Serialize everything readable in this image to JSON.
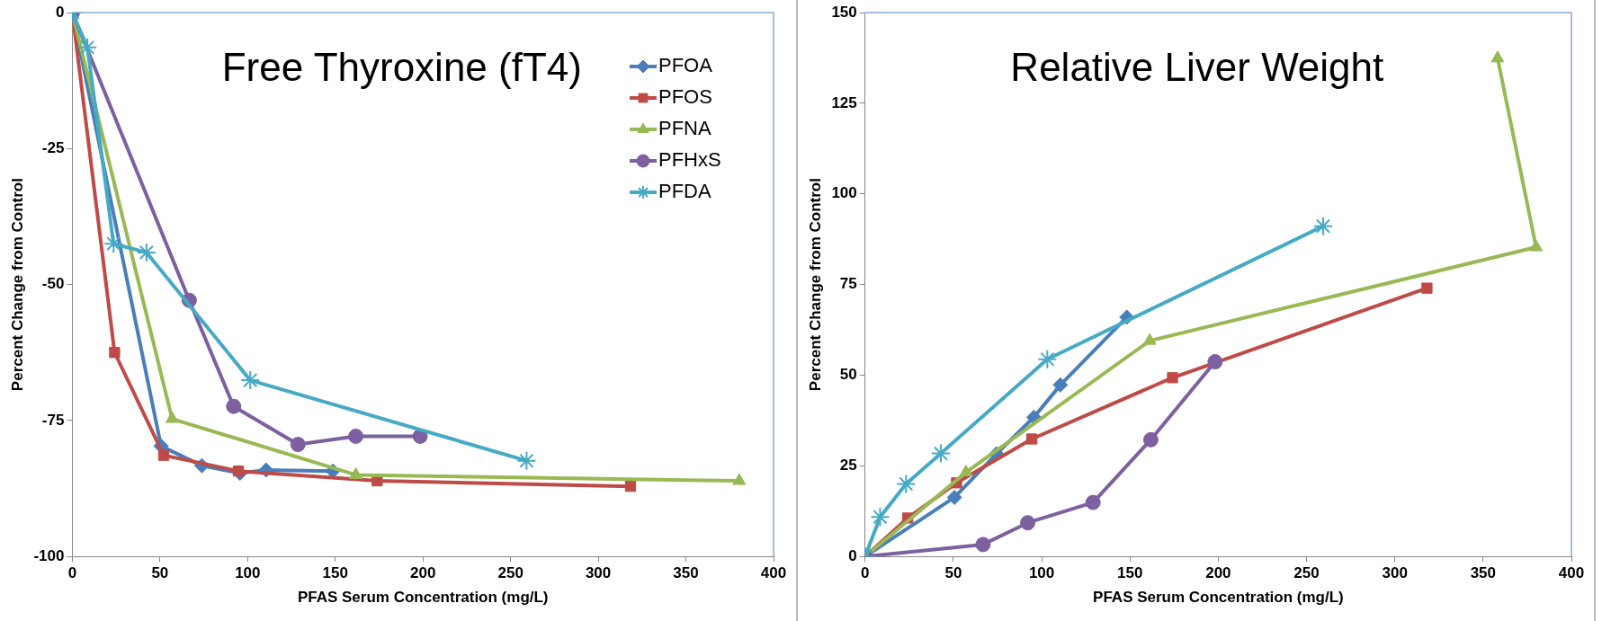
{
  "chart_data": [
    {
      "type": "line",
      "title": "Free Thyroxine (fT4)",
      "xlabel": "PFAS Serum Concentration (mg/L)",
      "ylabel": "Percent Change from Control",
      "xlim": [
        0,
        400
      ],
      "xticks": [
        0,
        50,
        100,
        150,
        200,
        250,
        300,
        350,
        400
      ],
      "ylim": [
        -100,
        0
      ],
      "yticks": [
        -100,
        -75,
        -50,
        -25,
        0
      ],
      "grid": false,
      "legend": "top right",
      "line_style": "solid",
      "series": [
        {
          "name": "PFOA",
          "color": "#4a7ebb",
          "marker": "diamond",
          "x": [
            0,
            50.6,
            73.9,
            95.6,
            110.5,
            148.6
          ],
          "values": [
            0,
            -79.7,
            -83.3,
            -84.7,
            -84.1,
            -84.3
          ]
        },
        {
          "name": "PFOS",
          "color": "#be4b48",
          "marker": "square",
          "x": [
            0,
            24.1,
            52.1,
            94.7,
            173.9,
            318.4
          ],
          "values": [
            0,
            -62.5,
            -81.4,
            -84.3,
            -86.1,
            -87.1
          ]
        },
        {
          "name": "PFNA",
          "color": "#98b954",
          "marker": "triangle",
          "x": [
            0,
            56.9,
            161.7,
            380.4
          ],
          "values": [
            0,
            -74.7,
            -85,
            -86.1
          ]
        },
        {
          "name": "PFHxS",
          "color": "#7d60a0",
          "marker": "circle",
          "x": [
            0,
            66.7,
            92,
            128.7,
            161.7,
            198.4
          ],
          "values": [
            0,
            -52.9,
            -72.4,
            -79.4,
            -77.9,
            -77.9
          ]
        },
        {
          "name": "PFDA",
          "color": "#46aac5",
          "marker": "cross",
          "x": [
            0,
            8.6,
            23.5,
            42.3,
            101.5,
            259.1
          ],
          "values": [
            0,
            -6.4,
            -42.5,
            -44.1,
            -67.6,
            -82.4
          ]
        }
      ]
    },
    {
      "type": "line",
      "title": "Relative Liver Weight",
      "xlabel": "PFAS Serum Concentration (mg/L)",
      "ylabel": "Percent Change from Control",
      "xlim": [
        0,
        400
      ],
      "xticks": [
        0,
        50,
        100,
        150,
        200,
        250,
        300,
        350,
        400
      ],
      "ylim": [
        0,
        150
      ],
      "yticks": [
        0,
        25,
        50,
        75,
        100,
        125,
        150
      ],
      "grid": false,
      "legend": false,
      "line_style": "solid",
      "series": [
        {
          "color": "#4a7ebb",
          "marker": "diamond",
          "x": [
            0,
            50.6,
            74.4,
            95.6,
            110.6,
            148.2
          ],
          "values": [
            0,
            16.3,
            28.3,
            38.4,
            47.3,
            66
          ]
        },
        {
          "color": "#be4b48",
          "marker": "square",
          "x": [
            0,
            24.1,
            51.8,
            94.4,
            174.1,
            318.2
          ],
          "values": [
            0,
            10.6,
            20.3,
            32.4,
            49.3,
            74
          ]
        },
        {
          "color": "#98b954",
          "marker": "triangle",
          "x": [
            0,
            57.1,
            161.2,
            380,
            358.2
          ],
          "values": [
            0,
            23.2,
            59.5,
            85.3,
            137.4
          ]
        },
        {
          "color": "#7d60a0",
          "marker": "circle",
          "x": [
            0,
            66.8,
            92.1,
            129.1,
            161.8,
            198.2
          ],
          "values": [
            0,
            3.3,
            9.3,
            14.9,
            32.2,
            53.7
          ]
        },
        {
          "color": "#46aac5",
          "marker": "cross",
          "x": [
            0,
            8.5,
            23.2,
            42.9,
            103.2,
            259.4
          ],
          "values": [
            0,
            10.9,
            20,
            28.4,
            54.4,
            91.1
          ]
        }
      ]
    }
  ]
}
